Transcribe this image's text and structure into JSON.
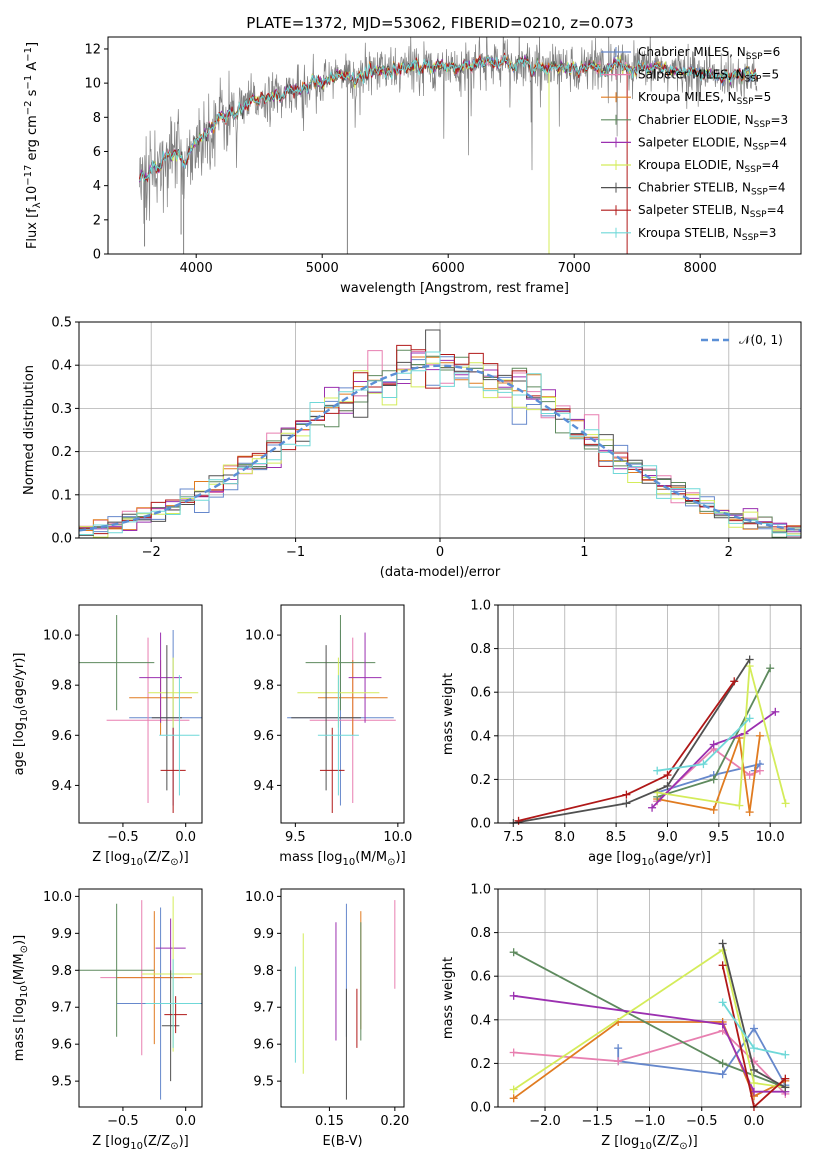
{
  "figure_title": "PLATE=1372, MJD=53062, FIBERID=0210, z=0.073",
  "colors": {
    "chabrier_miles": "#6688cc",
    "salpeter_miles": "#e87fb0",
    "kroupa_miles": "#e07b20",
    "chabrier_elodie": "#5e8a5e",
    "salpeter_elodie": "#9b30b0",
    "kroupa_elodie": "#d4ec5a",
    "chabrier_stelib": "#505050",
    "salpeter_stelib": "#b01818",
    "kroupa_stelib": "#6fd8d8",
    "data": "#808080",
    "normal": "#5b8fd6"
  },
  "chart_data": [
    {
      "id": "spectrum",
      "type": "line",
      "xlabel": "wavelength [Angstrom, rest frame]",
      "ylabel": "Flux [f_λ10^-17 erg cm^-2 s^-1 A^-1]",
      "xlim": [
        3300,
        8800
      ],
      "ylim": [
        0,
        12.7
      ],
      "xticks": [
        4000,
        5000,
        6000,
        7000,
        8000
      ],
      "yticks": [
        0,
        2,
        4,
        6,
        8,
        10,
        12
      ],
      "grid": false,
      "legend_position": "top-right",
      "data_x_range": [
        3550,
        8450
      ],
      "continuum": [
        [
          3550,
          4.4
        ],
        [
          3650,
          4.9
        ],
        [
          3800,
          6.0
        ],
        [
          3900,
          5.5
        ],
        [
          4000,
          6.4
        ],
        [
          4200,
          7.9
        ],
        [
          4400,
          8.7
        ],
        [
          4600,
          9.3
        ],
        [
          5000,
          10.1
        ],
        [
          5500,
          10.8
        ],
        [
          6000,
          11.0
        ],
        [
          6500,
          11.1
        ],
        [
          7000,
          11.0
        ],
        [
          7500,
          10.8
        ],
        [
          8000,
          10.6
        ],
        [
          8450,
          10.4
        ]
      ],
      "legend": [
        {
          "key": "chabrier_miles",
          "label": "Chabrier MILES, N",
          "n": "6"
        },
        {
          "key": "salpeter_miles",
          "label": "Salpeter MILES, N",
          "n": "5"
        },
        {
          "key": "kroupa_miles",
          "label": "Kroupa MILES, N",
          "n": "5"
        },
        {
          "key": "chabrier_elodie",
          "label": "Chabrier ELODIE, N",
          "n": "3"
        },
        {
          "key": "salpeter_elodie",
          "label": "Salpeter ELODIE, N",
          "n": "4"
        },
        {
          "key": "kroupa_elodie",
          "label": "Kroupa ELODIE, N",
          "n": "4"
        },
        {
          "key": "chabrier_stelib",
          "label": "Chabrier STELIB, N",
          "n": "4"
        },
        {
          "key": "salpeter_stelib",
          "label": "Salpeter STELIB, N",
          "n": "4"
        },
        {
          "key": "kroupa_stelib",
          "label": "Kroupa STELIB, N",
          "n": "3"
        }
      ],
      "legend_sub": "SSP"
    },
    {
      "id": "residuals",
      "type": "histogram",
      "xlabel": "(data-model)/error",
      "ylabel": "Normed distribution",
      "xlim": [
        -2.5,
        2.5
      ],
      "ylim": [
        0,
        0.5
      ],
      "xticks": [
        -2,
        -1,
        0,
        1,
        2
      ],
      "yticks": [
        0.0,
        0.1,
        0.2,
        0.3,
        0.4,
        0.5
      ],
      "grid": true,
      "bin_width": 0.1,
      "legend_position": "top-right",
      "normal_label": "𝒩(0, 1)"
    },
    {
      "id": "age_vs_z",
      "type": "errorbar",
      "xlabel": "Z [log10(Z/Z⊙)]",
      "ylabel": "age [log10(age/yr)]",
      "xlim": [
        -0.85,
        0.13
      ],
      "ylim": [
        9.25,
        10.12
      ],
      "xticks": [
        -0.5,
        0.0
      ],
      "yticks": [
        9.4,
        9.6,
        9.8,
        10.0
      ],
      "grid": false,
      "points": [
        {
          "key": "chabrier_miles",
          "x": -0.1,
          "xerr": 0.35,
          "y": 9.67,
          "yerr": 0.35
        },
        {
          "key": "salpeter_miles",
          "x": -0.3,
          "xerr": 0.33,
          "y": 9.66,
          "yerr": 0.33
        },
        {
          "key": "kroupa_miles",
          "x": -0.2,
          "xerr": 0.25,
          "y": 9.75,
          "yerr": 0.15
        },
        {
          "key": "chabrier_elodie",
          "x": -0.55,
          "xerr": 0.3,
          "y": 9.89,
          "yerr": 0.19
        },
        {
          "key": "salpeter_elodie",
          "x": -0.2,
          "xerr": 0.17,
          "y": 9.83,
          "yerr": 0.18
        },
        {
          "key": "kroupa_elodie",
          "x": -0.1,
          "xerr": 0.2,
          "y": 9.77,
          "yerr": 0.14
        },
        {
          "key": "chabrier_stelib",
          "x": -0.15,
          "xerr": 0.12,
          "y": 9.67,
          "yerr": 0.29
        },
        {
          "key": "salpeter_stelib",
          "x": -0.1,
          "xerr": 0.1,
          "y": 9.46,
          "yerr": 0.17
        },
        {
          "key": "kroupa_stelib",
          "x": -0.05,
          "xerr": 0.16,
          "y": 9.6,
          "yerr": 0.24
        }
      ]
    },
    {
      "id": "age_vs_mass",
      "type": "errorbar",
      "xlabel": "mass [log10(M/M⊙)]",
      "ylabel": "",
      "xlim": [
        9.43,
        10.03
      ],
      "ylim": [
        9.25,
        10.12
      ],
      "xticks": [
        9.5,
        10.0
      ],
      "yticks": [
        9.4,
        9.6,
        9.8,
        10.0
      ],
      "grid": false,
      "points": [
        {
          "key": "chabrier_miles",
          "x": 9.72,
          "xerr": 0.26,
          "y": 9.67,
          "yerr": 0.35
        },
        {
          "key": "salpeter_miles",
          "x": 9.78,
          "xerr": 0.21,
          "y": 9.66,
          "yerr": 0.33
        },
        {
          "key": "kroupa_miles",
          "x": 9.78,
          "xerr": 0.17,
          "y": 9.75,
          "yerr": 0.15
        },
        {
          "key": "chabrier_elodie",
          "x": 9.72,
          "xerr": 0.17,
          "y": 9.89,
          "yerr": 0.19
        },
        {
          "key": "salpeter_elodie",
          "x": 9.84,
          "xerr": 0.08,
          "y": 9.83,
          "yerr": 0.18
        },
        {
          "key": "kroupa_elodie",
          "x": 9.71,
          "xerr": 0.2,
          "y": 9.77,
          "yerr": 0.14
        },
        {
          "key": "chabrier_stelib",
          "x": 9.65,
          "xerr": 0.17,
          "y": 9.67,
          "yerr": 0.29
        },
        {
          "key": "salpeter_stelib",
          "x": 9.68,
          "xerr": 0.06,
          "y": 9.46,
          "yerr": 0.17
        },
        {
          "key": "kroupa_stelib",
          "x": 9.71,
          "xerr": 0.1,
          "y": 9.6,
          "yerr": 0.24
        }
      ]
    },
    {
      "id": "weight_vs_age",
      "type": "line",
      "xlabel": "age [log10(age/yr)]",
      "ylabel": "mass weight",
      "xlim": [
        7.35,
        10.3
      ],
      "ylim": [
        0,
        1
      ],
      "xticks": [
        7.5,
        8.0,
        8.5,
        9.0,
        9.5,
        10.0
      ],
      "yticks": [
        0.0,
        0.2,
        0.4,
        0.6,
        0.8,
        1.0
      ],
      "grid": true,
      "series": [
        {
          "key": "chabrier_miles",
          "points": [
            [
              8.9,
              0.14
            ],
            [
              9.45,
              0.22
            ],
            [
              9.9,
              0.27
            ],
            [
              9.85,
              0.24
            ]
          ]
        },
        {
          "key": "salpeter_miles",
          "points": [
            [
              8.9,
              0.1
            ],
            [
              9.45,
              0.34
            ],
            [
              9.8,
              0.22
            ],
            [
              9.9,
              0.24
            ]
          ]
        },
        {
          "key": "kroupa_miles",
          "points": [
            [
              8.9,
              0.11
            ],
            [
              9.45,
              0.06
            ],
            [
              9.7,
              0.39
            ],
            [
              9.8,
              0.05
            ],
            [
              9.9,
              0.4
            ]
          ]
        },
        {
          "key": "chabrier_elodie",
          "points": [
            [
              8.9,
              0.12
            ],
            [
              9.45,
              0.2
            ],
            [
              10.0,
              0.71
            ]
          ]
        },
        {
          "key": "salpeter_elodie",
          "points": [
            [
              8.85,
              0.07
            ],
            [
              9.45,
              0.36
            ],
            [
              9.75,
              0.41
            ],
            [
              10.05,
              0.51
            ]
          ]
        },
        {
          "key": "kroupa_elodie",
          "points": [
            [
              8.9,
              0.14
            ],
            [
              9.7,
              0.08
            ],
            [
              9.8,
              0.72
            ],
            [
              10.15,
              0.09
            ]
          ]
        },
        {
          "key": "chabrier_stelib",
          "points": [
            [
              7.5,
              0.0
            ],
            [
              8.6,
              0.09
            ],
            [
              9.0,
              0.17
            ],
            [
              9.8,
              0.75
            ]
          ]
        },
        {
          "key": "salpeter_stelib",
          "points": [
            [
              7.55,
              0.01
            ],
            [
              8.6,
              0.13
            ],
            [
              9.0,
              0.22
            ],
            [
              9.65,
              0.65
            ]
          ]
        },
        {
          "key": "kroupa_stelib",
          "points": [
            [
              8.9,
              0.24
            ],
            [
              9.35,
              0.27
            ],
            [
              9.8,
              0.48
            ]
          ]
        }
      ]
    },
    {
      "id": "mass_vs_z",
      "type": "errorbar",
      "xlabel": "Z [log10(Z/Z⊙)]",
      "ylabel": "mass [log10(M/M⊙)]",
      "xlim": [
        -0.85,
        0.13
      ],
      "ylim": [
        9.43,
        10.02
      ],
      "xticks": [
        -0.5,
        0.0
      ],
      "yticks": [
        9.5,
        9.6,
        9.7,
        9.8,
        9.9,
        10.0
      ],
      "grid": false,
      "points": [
        {
          "key": "chabrier_miles",
          "x": -0.2,
          "xerr": 0.35,
          "y": 9.71,
          "yerr": 0.26
        },
        {
          "key": "salpeter_miles",
          "x": -0.35,
          "xerr": 0.33,
          "y": 9.78,
          "yerr": 0.21
        },
        {
          "key": "kroupa_miles",
          "x": -0.25,
          "xerr": 0.3,
          "y": 9.78,
          "yerr": 0.18
        },
        {
          "key": "chabrier_elodie",
          "x": -0.55,
          "xerr": 0.3,
          "y": 9.8,
          "yerr": 0.18
        },
        {
          "key": "salpeter_elodie",
          "x": -0.12,
          "xerr": 0.12,
          "y": 9.86,
          "yerr": 0.08
        },
        {
          "key": "kroupa_elodie",
          "x": -0.1,
          "xerr": 0.25,
          "y": 9.79,
          "yerr": 0.21
        },
        {
          "key": "chabrier_stelib",
          "x": -0.12,
          "xerr": 0.07,
          "y": 9.65,
          "yerr": 0.15
        },
        {
          "key": "salpeter_stelib",
          "x": -0.08,
          "xerr": 0.09,
          "y": 9.68,
          "yerr": 0.05
        },
        {
          "key": "kroupa_stelib",
          "x": -0.1,
          "xerr": 0.22,
          "y": 9.71,
          "yerr": 0.12
        }
      ]
    },
    {
      "id": "mass_vs_ebv",
      "type": "errorbar",
      "xlabel": "E(B-V)",
      "ylabel": "",
      "xlim": [
        0.113,
        0.207
      ],
      "ylim": [
        9.43,
        10.02
      ],
      "xticks": [
        0.15,
        0.2
      ],
      "yticks": [
        9.5,
        9.6,
        9.7,
        9.8,
        9.9,
        10.0
      ],
      "grid": false,
      "points": [
        {
          "key": "chabrier_miles",
          "x": 0.163,
          "y": 9.8,
          "yerr": 0.18
        },
        {
          "key": "salpeter_miles",
          "x": 0.2,
          "y": 9.87,
          "yerr": 0.12
        },
        {
          "key": "kroupa_miles",
          "x": 0.174,
          "y": 9.8,
          "yerr": 0.16
        },
        {
          "key": "chabrier_elodie",
          "x": 0.174,
          "y": 9.77,
          "yerr": 0.16
        },
        {
          "key": "salpeter_elodie",
          "x": 0.155,
          "y": 9.77,
          "yerr": 0.16
        },
        {
          "key": "kroupa_elodie",
          "x": 0.13,
          "y": 9.71,
          "yerr": 0.19
        },
        {
          "key": "chabrier_stelib",
          "x": 0.163,
          "y": 9.6,
          "yerr": 0.15
        },
        {
          "key": "salpeter_stelib",
          "x": 0.171,
          "y": 9.67,
          "yerr": 0.08
        },
        {
          "key": "kroupa_stelib",
          "x": 0.124,
          "y": 9.68,
          "yerr": 0.13
        }
      ]
    },
    {
      "id": "weight_vs_z",
      "type": "line",
      "xlabel": "Z [log10(Z/Z⊙)]",
      "ylabel": "mass weight",
      "xlim": [
        -2.45,
        0.45
      ],
      "ylim": [
        0,
        1
      ],
      "xticks": [
        -2.0,
        -1.5,
        -1.0,
        -0.5,
        0.0
      ],
      "yticks": [
        0.0,
        0.2,
        0.4,
        0.6,
        0.8,
        1.0
      ],
      "grid": true,
      "series": [
        {
          "key": "chabrier_miles",
          "points": [
            [
              -1.3,
              0.27
            ],
            [
              -1.3,
              0.21
            ],
            [
              -0.3,
              0.15
            ],
            [
              0.0,
              0.36
            ],
            [
              0.3,
              0.1
            ]
          ]
        },
        {
          "key": "salpeter_miles",
          "points": [
            [
              -2.3,
              0.25
            ],
            [
              -1.3,
              0.21
            ],
            [
              -0.3,
              0.35
            ],
            [
              0.0,
              0.21
            ],
            [
              0.3,
              0.06
            ]
          ]
        },
        {
          "key": "kroupa_miles",
          "points": [
            [
              -2.3,
              0.04
            ],
            [
              -1.3,
              0.39
            ],
            [
              -0.3,
              0.39
            ],
            [
              0.0,
              0.05
            ],
            [
              0.3,
              0.12
            ]
          ]
        },
        {
          "key": "chabrier_elodie",
          "points": [
            [
              -2.3,
              0.71
            ],
            [
              -0.3,
              0.2
            ],
            [
              0.3,
              0.09
            ]
          ]
        },
        {
          "key": "salpeter_elodie",
          "points": [
            [
              -2.3,
              0.51
            ],
            [
              -0.3,
              0.38
            ],
            [
              0.0,
              0.07
            ],
            [
              0.3,
              0.07
            ]
          ]
        },
        {
          "key": "kroupa_elodie",
          "points": [
            [
              -2.3,
              0.08
            ],
            [
              -0.3,
              0.72
            ],
            [
              0.0,
              0.11
            ],
            [
              0.3,
              0.09
            ]
          ]
        },
        {
          "key": "chabrier_stelib",
          "points": [
            [
              -0.3,
              0.75
            ],
            [
              0.0,
              0.17
            ],
            [
              0.3,
              0.09
            ]
          ]
        },
        {
          "key": "salpeter_stelib",
          "points": [
            [
              -0.3,
              0.65
            ],
            [
              0.0,
              0.0
            ],
            [
              0.3,
              0.13
            ]
          ]
        },
        {
          "key": "kroupa_stelib",
          "points": [
            [
              -0.3,
              0.48
            ],
            [
              0.0,
              0.27
            ],
            [
              0.3,
              0.24
            ]
          ]
        }
      ]
    }
  ]
}
